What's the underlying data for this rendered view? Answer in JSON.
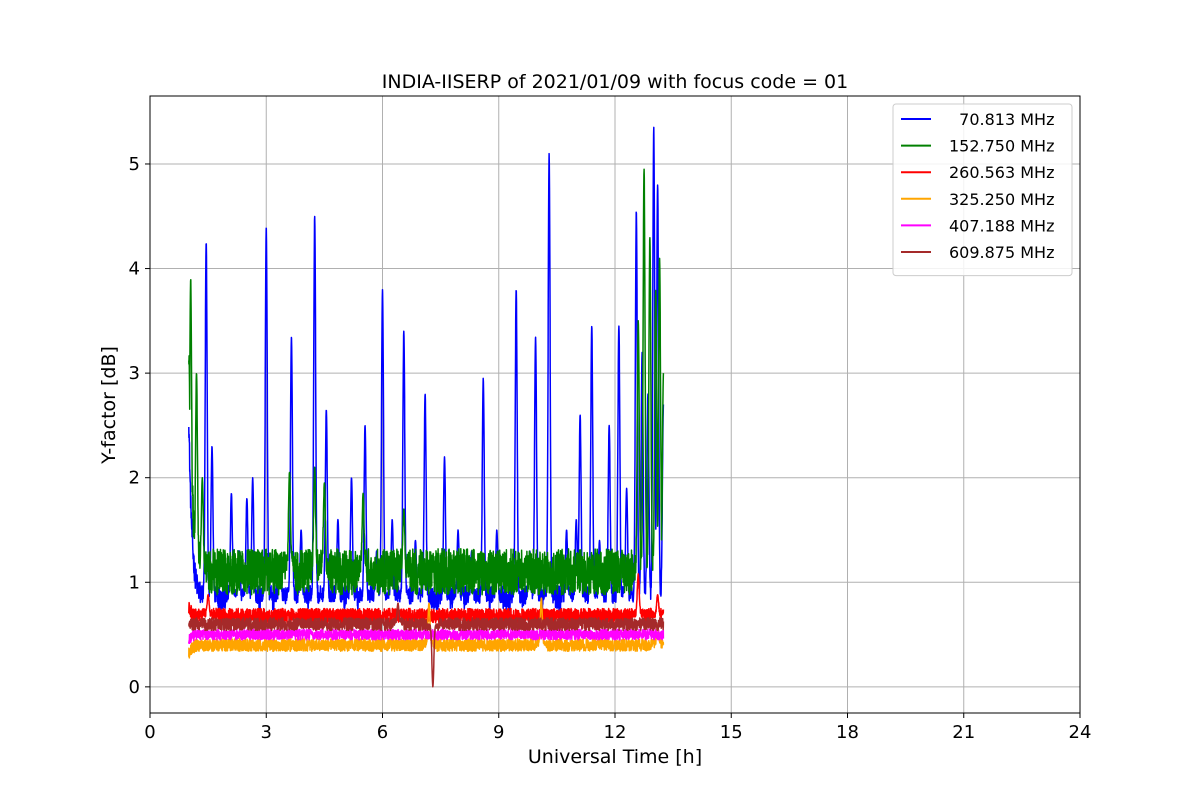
{
  "chart_data": {
    "type": "line",
    "title": "INDIA-IISERP of 2021/01/09 with focus code = 01",
    "xlabel": "Universal Time [h]",
    "ylabel": "Y-factor [dB]",
    "xlim": [
      0,
      24
    ],
    "ylim": [
      -0.25,
      5.65
    ],
    "xticks": [
      0,
      3,
      6,
      9,
      12,
      15,
      18,
      21,
      24
    ],
    "yticks": [
      0,
      1,
      2,
      3,
      4,
      5
    ],
    "grid": true,
    "legend_position": "top-right",
    "series": [
      {
        "name": "  70.813 MHz",
        "color": "#0000ff",
        "baseline": 0.85,
        "noise": 0.12,
        "x_range": [
          1.0,
          13.25
        ],
        "start_level": 2.6,
        "peaks": [
          {
            "x": 1.05,
            "y": 1.7
          },
          {
            "x": 1.45,
            "y": 4.25
          },
          {
            "x": 1.6,
            "y": 2.3
          },
          {
            "x": 2.1,
            "y": 1.85
          },
          {
            "x": 2.3,
            "y": 1.3
          },
          {
            "x": 2.5,
            "y": 1.8
          },
          {
            "x": 2.65,
            "y": 2.0
          },
          {
            "x": 3.0,
            "y": 4.4
          },
          {
            "x": 3.35,
            "y": 1.2
          },
          {
            "x": 3.65,
            "y": 3.35
          },
          {
            "x": 3.9,
            "y": 1.5
          },
          {
            "x": 4.25,
            "y": 4.5
          },
          {
            "x": 4.55,
            "y": 2.65
          },
          {
            "x": 4.85,
            "y": 1.6
          },
          {
            "x": 5.2,
            "y": 2.0
          },
          {
            "x": 5.55,
            "y": 2.5
          },
          {
            "x": 5.85,
            "y": 1.3
          },
          {
            "x": 6.0,
            "y": 3.8
          },
          {
            "x": 6.25,
            "y": 1.6
          },
          {
            "x": 6.55,
            "y": 3.4
          },
          {
            "x": 6.85,
            "y": 1.4
          },
          {
            "x": 7.1,
            "y": 2.8
          },
          {
            "x": 7.6,
            "y": 2.2
          },
          {
            "x": 7.95,
            "y": 1.5
          },
          {
            "x": 8.3,
            "y": 1.3
          },
          {
            "x": 8.6,
            "y": 2.95
          },
          {
            "x": 8.95,
            "y": 1.5
          },
          {
            "x": 9.45,
            "y": 3.8
          },
          {
            "x": 9.8,
            "y": 1.3
          },
          {
            "x": 9.95,
            "y": 3.35
          },
          {
            "x": 10.3,
            "y": 5.1
          },
          {
            "x": 10.75,
            "y": 1.5
          },
          {
            "x": 11.0,
            "y": 1.6
          },
          {
            "x": 11.1,
            "y": 2.6
          },
          {
            "x": 11.4,
            "y": 3.45
          },
          {
            "x": 11.6,
            "y": 1.4
          },
          {
            "x": 11.85,
            "y": 2.5
          },
          {
            "x": 12.1,
            "y": 3.45
          },
          {
            "x": 12.3,
            "y": 1.9
          },
          {
            "x": 12.55,
            "y": 4.55
          },
          {
            "x": 12.7,
            "y": 3.2
          },
          {
            "x": 12.85,
            "y": 2.8
          },
          {
            "x": 13.0,
            "y": 5.35
          },
          {
            "x": 13.1,
            "y": 4.8
          },
          {
            "x": 13.25,
            "y": 2.7
          }
        ]
      },
      {
        "name": "152.750 MHz",
        "color": "#008000",
        "baseline": 1.1,
        "noise": 0.22,
        "x_range": [
          1.0,
          13.25
        ],
        "start_level": 3.3,
        "peaks": [
          {
            "x": 1.05,
            "y": 3.9
          },
          {
            "x": 1.2,
            "y": 3.0
          },
          {
            "x": 1.35,
            "y": 2.0
          },
          {
            "x": 3.6,
            "y": 2.05
          },
          {
            "x": 4.25,
            "y": 2.1
          },
          {
            "x": 4.5,
            "y": 1.95
          },
          {
            "x": 5.5,
            "y": 1.85
          },
          {
            "x": 6.55,
            "y": 1.7
          },
          {
            "x": 12.6,
            "y": 3.5
          },
          {
            "x": 12.75,
            "y": 4.95
          },
          {
            "x": 12.9,
            "y": 4.3
          },
          {
            "x": 13.05,
            "y": 3.8
          },
          {
            "x": 13.15,
            "y": 4.1
          },
          {
            "x": 13.25,
            "y": 3.0
          }
        ]
      },
      {
        "name": "260.563 MHz",
        "color": "#ff0000",
        "baseline": 0.68,
        "noise": 0.07,
        "x_range": [
          1.0,
          13.25
        ],
        "start_level": 0.75,
        "peaks": [
          {
            "x": 1.5,
            "y": 0.88
          },
          {
            "x": 12.6,
            "y": 1.08
          },
          {
            "x": 13.1,
            "y": 0.88
          }
        ]
      },
      {
        "name": "325.250 MHz",
        "color": "#ffa500",
        "baseline": 0.4,
        "noise": 0.06,
        "x_range": [
          1.0,
          13.25
        ],
        "start_level": 0.32,
        "peaks": [
          {
            "x": 7.2,
            "y": 0.8
          },
          {
            "x": 10.1,
            "y": 0.85
          },
          {
            "x": 13.1,
            "y": 0.6
          }
        ]
      },
      {
        "name": "407.188 MHz",
        "color": "#ff00ff",
        "baseline": 0.5,
        "noise": 0.05,
        "x_range": [
          1.0,
          13.25
        ],
        "start_level": 0.45,
        "peaks": []
      },
      {
        "name": "609.875 MHz",
        "color": "#a52a2a",
        "baseline": 0.6,
        "noise": 0.06,
        "x_range": [
          1.0,
          13.25
        ],
        "start_level": 0.6,
        "peaks": [
          {
            "x": 6.4,
            "y": 0.8
          },
          {
            "x": 7.3,
            "y": 0.0
          }
        ]
      }
    ]
  }
}
